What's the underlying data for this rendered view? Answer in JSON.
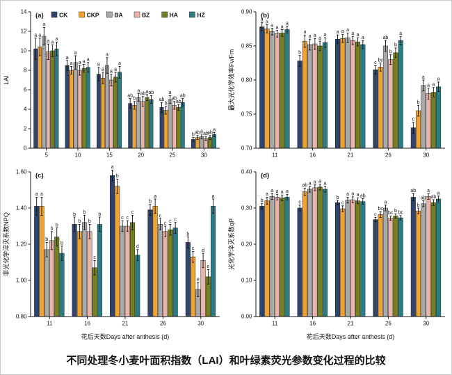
{
  "caption": "不同处理冬小麦叶面积指数（LAI）和叶绿素荧光参数变化过程的比较",
  "legend": {
    "position": "top-inside-panel-a",
    "entries": [
      {
        "label": "CK",
        "color": "#31446c"
      },
      {
        "label": "CKP",
        "color": "#f0a330"
      },
      {
        "label": "BA",
        "color": "#a9a9a9"
      },
      {
        "label": "BZ",
        "color": "#eab4aa"
      },
      {
        "label": "HA",
        "color": "#77801f"
      },
      {
        "label": "HZ",
        "color": "#2b7c85"
      }
    ]
  },
  "chart_data": [
    {
      "id": "a",
      "panel_label": "(a)",
      "type": "bar",
      "title": "",
      "ylabel": "LAI",
      "xlabel": "",
      "ylim": [
        0,
        14
      ],
      "yticks": [
        0,
        2,
        4,
        6,
        8,
        10,
        12,
        14
      ],
      "ytick_decimals": 0,
      "grid": false,
      "show_legend": true,
      "categories": [
        "5",
        "10",
        "15",
        "20",
        "25",
        "30"
      ],
      "series": [
        {
          "name": "CK",
          "values": [
            10.2,
            8.5,
            7.6,
            4.6,
            4.2,
            0.9
          ],
          "errors": [
            1.1,
            0.5,
            0.7,
            0.5,
            0.5,
            0.2
          ],
          "letters": [
            "a",
            "a",
            "a",
            "ab",
            "ab",
            "b"
          ]
        },
        {
          "name": "CKP",
          "values": [
            10.4,
            8.0,
            7.2,
            4.4,
            3.9,
            1.1
          ],
          "errors": [
            0.9,
            0.4,
            0.6,
            0.4,
            0.4,
            0.2
          ],
          "letters": [
            "a",
            "a",
            "a",
            "b",
            "b",
            "ab"
          ]
        },
        {
          "name": "BA",
          "values": [
            11.5,
            8.8,
            8.5,
            5.2,
            5.0,
            1.2
          ],
          "errors": [
            0.9,
            0.7,
            0.8,
            0.4,
            0.4,
            0.25
          ],
          "letters": [
            "a",
            "a",
            "a",
            "a",
            "a",
            "a"
          ]
        },
        {
          "name": "BZ",
          "values": [
            9.9,
            8.0,
            7.0,
            4.8,
            4.4,
            1.0
          ],
          "errors": [
            0.8,
            0.5,
            0.6,
            0.5,
            0.4,
            0.2
          ],
          "letters": [
            "a",
            "a",
            "a",
            "ab",
            "ab",
            "ab"
          ]
        },
        {
          "name": "HA",
          "values": [
            10.0,
            8.2,
            7.3,
            5.2,
            4.2,
            1.1
          ],
          "errors": [
            0.6,
            0.4,
            0.5,
            0.3,
            0.3,
            0.2
          ],
          "letters": [
            "a",
            "a",
            "a",
            "a",
            "ab",
            "ab"
          ]
        },
        {
          "name": "HZ",
          "values": [
            10.2,
            8.3,
            7.8,
            5.0,
            4.7,
            1.4
          ],
          "errors": [
            0.7,
            0.5,
            0.6,
            0.4,
            0.4,
            0.2
          ],
          "letters": [
            "a",
            "a",
            "a",
            "ab",
            "ab",
            "a"
          ]
        }
      ]
    },
    {
      "id": "b",
      "panel_label": "(b)",
      "type": "bar",
      "title": "",
      "ylabel": "最大光化学效率Fv/Fm",
      "xlabel": "",
      "ylim": [
        0.7,
        0.9
      ],
      "yticks": [
        0.7,
        0.75,
        0.8,
        0.85,
        0.9
      ],
      "ytick_decimals": 2,
      "grid": false,
      "show_legend": false,
      "categories": [
        "11",
        "16",
        "21",
        "26",
        "30"
      ],
      "series": [
        {
          "name": "CK",
          "values": [
            0.878,
            0.828,
            0.86,
            0.815,
            0.73
          ],
          "errors": [
            0.006,
            0.008,
            0.006,
            0.006,
            0.008
          ],
          "letters": [
            "a",
            "b",
            "a",
            "c",
            "c"
          ]
        },
        {
          "name": "CKP",
          "values": [
            0.875,
            0.857,
            0.861,
            0.819,
            0.755
          ],
          "errors": [
            0.006,
            0.009,
            0.006,
            0.006,
            0.008
          ],
          "letters": [
            "a",
            "a",
            "a",
            "bc",
            "b"
          ]
        },
        {
          "name": "BA",
          "values": [
            0.871,
            0.852,
            0.862,
            0.85,
            0.792
          ],
          "errors": [
            0.005,
            0.008,
            0.007,
            0.008,
            0.008
          ],
          "letters": [
            "a",
            "a",
            "a",
            "ab",
            "a"
          ]
        },
        {
          "name": "BZ",
          "values": [
            0.868,
            0.853,
            0.858,
            0.83,
            0.78
          ],
          "errors": [
            0.005,
            0.008,
            0.006,
            0.007,
            0.008
          ],
          "letters": [
            "a",
            "a",
            "a",
            "b",
            "a"
          ]
        },
        {
          "name": "HA",
          "values": [
            0.869,
            0.85,
            0.856,
            0.84,
            0.782
          ],
          "errors": [
            0.005,
            0.007,
            0.006,
            0.007,
            0.007
          ],
          "letters": [
            "a",
            "a",
            "a",
            "b",
            "a"
          ]
        },
        {
          "name": "HZ",
          "values": [
            0.874,
            0.855,
            0.852,
            0.858,
            0.79
          ],
          "errors": [
            0.005,
            0.007,
            0.006,
            0.006,
            0.007
          ],
          "letters": [
            "a",
            "a",
            "a",
            "a",
            "a"
          ]
        }
      ]
    },
    {
      "id": "c",
      "panel_label": "(c)",
      "type": "bar",
      "title": "",
      "ylabel": "非光化学淬灭系数NPQ",
      "xlabel": "花后天数Days after anthesis (d)",
      "ylim": [
        0.8,
        1.6
      ],
      "yticks": [
        0.8,
        1.0,
        1.2,
        1.4,
        1.6
      ],
      "ytick_decimals": 2,
      "grid": false,
      "show_legend": false,
      "categories": [
        "11",
        "16",
        "21",
        "26",
        "30"
      ],
      "series": [
        {
          "name": "CK",
          "values": [
            1.41,
            1.31,
            1.58,
            1.39,
            1.21
          ],
          "errors": [
            0.05,
            0.04,
            0.03,
            0.03,
            0.03
          ],
          "letters": [
            "a",
            "b",
            "a",
            "b",
            "b"
          ]
        },
        {
          "name": "CKP",
          "values": [
            1.41,
            1.27,
            1.52,
            1.41,
            1.13
          ],
          "errors": [
            0.05,
            0.04,
            0.04,
            0.04,
            0.03
          ],
          "letters": [
            "a",
            "b",
            "b",
            "a",
            "c"
          ]
        },
        {
          "name": "BA",
          "values": [
            1.17,
            1.32,
            1.3,
            1.31,
            0.95
          ],
          "errors": [
            0.04,
            0.04,
            0.03,
            0.03,
            0.04
          ],
          "letters": [
            "b",
            "b",
            "c",
            "c",
            "e"
          ]
        },
        {
          "name": "BZ",
          "values": [
            1.22,
            1.27,
            1.3,
            1.27,
            1.11
          ],
          "errors": [
            0.05,
            0.04,
            0.03,
            0.03,
            0.04
          ],
          "letters": [
            "b",
            "b",
            "c",
            "c",
            "d"
          ]
        },
        {
          "name": "HA",
          "values": [
            1.24,
            1.07,
            1.32,
            1.28,
            1.02
          ],
          "errors": [
            0.05,
            0.04,
            0.04,
            0.03,
            0.04
          ],
          "letters": [
            "b",
            "c",
            "c",
            "c",
            "e"
          ]
        },
        {
          "name": "HZ",
          "values": [
            1.15,
            1.31,
            1.14,
            1.29,
            1.41
          ],
          "errors": [
            0.04,
            0.04,
            0.03,
            0.03,
            0.04
          ],
          "letters": [
            "b",
            "b",
            "d",
            "c",
            "a"
          ]
        }
      ]
    },
    {
      "id": "d",
      "panel_label": "(d)",
      "type": "bar",
      "title": "",
      "ylabel": "光化学淬灭系数qP",
      "xlabel": "花后天数Days after anthesis (d)",
      "ylim": [
        0.0,
        0.4
      ],
      "yticks": [
        0.0,
        0.1,
        0.2,
        0.3,
        0.4
      ],
      "ytick_decimals": 2,
      "grid": false,
      "show_legend": false,
      "categories": [
        "11",
        "16",
        "21",
        "26",
        "30"
      ],
      "series": [
        {
          "name": "CK",
          "values": [
            0.305,
            0.3,
            0.315,
            0.268,
            0.33
          ],
          "errors": [
            0.008,
            0.008,
            0.006,
            0.006,
            0.01
          ],
          "letters": [
            "b",
            "c",
            "b",
            "c",
            "ab"
          ]
        },
        {
          "name": "CKP",
          "values": [
            0.32,
            0.345,
            0.298,
            0.282,
            0.292
          ],
          "errors": [
            0.01,
            0.01,
            0.008,
            0.008,
            0.008
          ],
          "letters": [
            "a",
            "ab",
            "c",
            "bc",
            "b"
          ]
        },
        {
          "name": "BA",
          "values": [
            0.332,
            0.352,
            0.322,
            0.3,
            0.312
          ],
          "errors": [
            0.008,
            0.008,
            0.008,
            0.008,
            0.008
          ],
          "letters": [
            "a",
            "a",
            "a",
            "a",
            "ab"
          ]
        },
        {
          "name": "BZ",
          "values": [
            0.33,
            0.356,
            0.323,
            0.272,
            0.332
          ],
          "errors": [
            0.008,
            0.008,
            0.008,
            0.006,
            0.008
          ],
          "letters": [
            "a",
            "a",
            "a",
            "bc",
            "a"
          ]
        },
        {
          "name": "HA",
          "values": [
            0.328,
            0.358,
            0.32,
            0.278,
            0.315
          ],
          "errors": [
            0.008,
            0.008,
            0.008,
            0.006,
            0.008
          ],
          "letters": [
            "a",
            "a",
            "a",
            "b",
            "ab"
          ]
        },
        {
          "name": "HZ",
          "values": [
            0.33,
            0.352,
            0.318,
            0.273,
            0.325
          ],
          "errors": [
            0.008,
            0.008,
            0.008,
            0.006,
            0.008
          ],
          "letters": [
            "a",
            "a",
            "ab",
            "bc",
            "a"
          ]
        }
      ]
    }
  ]
}
